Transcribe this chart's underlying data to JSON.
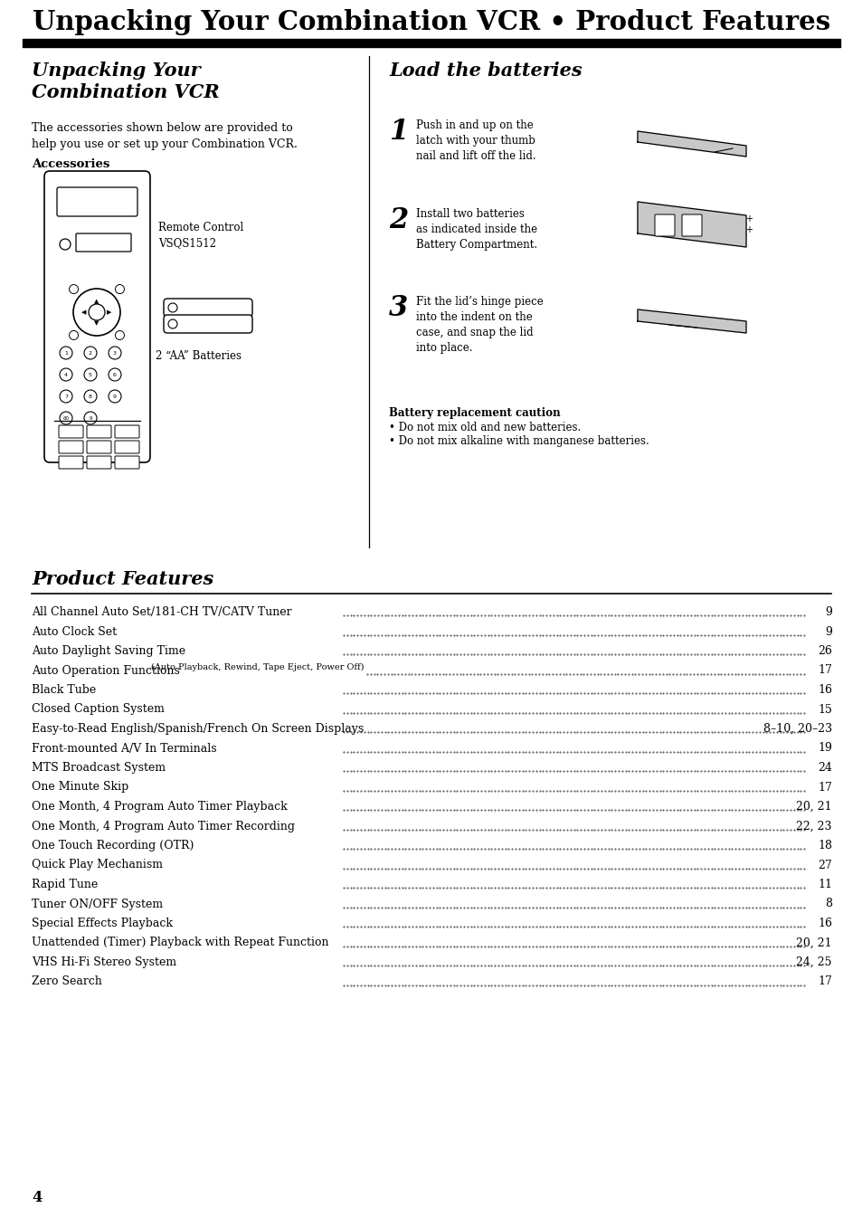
{
  "main_title": "Unpacking Your Combination VCR • Product Features",
  "left_section_title": "Unpacking Your\nCombination VCR",
  "left_body": "The accessories shown below are provided to\nhelp you use or set up your Combination VCR.",
  "accessories_label": "Accessories",
  "remote_label": "Remote Control\nVSQS1512",
  "batteries_label": "2 “AA” Batteries",
  "right_section_title": "Load the batteries",
  "step1_num": "1",
  "step1_text": "Push in and up on the\nlatch with your thumb\nnail and lift off the lid.",
  "step2_num": "2",
  "step2_text": "Install two batteries\nas indicated inside the\nBattery Compartment.",
  "step3_num": "3",
  "step3_text": "Fit the lid’s hinge piece\ninto the indent on the\ncase, and snap the lid\ninto place.",
  "battery_caution_title": "Battery replacement caution",
  "battery_caution_items": [
    "Do not mix old and new batteries.",
    "Do not mix alkaline with manganese batteries."
  ],
  "product_features_title": "Product Features",
  "features": [
    [
      "All Channel Auto Set/181-CH TV/CATV Tuner",
      "",
      "9"
    ],
    [
      "Auto Clock Set",
      "",
      "9"
    ],
    [
      "Auto Daylight Saving Time",
      "",
      "26"
    ],
    [
      "Auto Operation Functions",
      "(Auto Playback, Rewind, Tape Eject, Power Off)",
      "17"
    ],
    [
      "Black Tube",
      "",
      "16"
    ],
    [
      "Closed Caption System",
      "",
      "15"
    ],
    [
      "Easy-to-Read English/Spanish/French On Screen Displays",
      "",
      "8–10, 20–23"
    ],
    [
      "Front-mounted A/V In Terminals",
      "",
      "19"
    ],
    [
      "MTS Broadcast System",
      "",
      "24"
    ],
    [
      "One Minute Skip",
      "",
      "17"
    ],
    [
      "One Month, 4 Program Auto Timer Playback",
      "",
      "20, 21"
    ],
    [
      "One Month, 4 Program Auto Timer Recording",
      "",
      "22, 23"
    ],
    [
      "One Touch Recording (OTR)",
      "",
      "18"
    ],
    [
      "Quick Play Mechanism",
      "",
      "27"
    ],
    [
      "Rapid Tune",
      "",
      "11"
    ],
    [
      "Tuner ON/OFF System",
      "",
      "8"
    ],
    [
      "Special Effects Playback",
      "",
      "16"
    ],
    [
      "Unattended (Timer) Playback with Repeat Function",
      "",
      "20, 21"
    ],
    [
      "VHS Hi-Fi Stereo System",
      "",
      "24, 25"
    ],
    [
      "Zero Search",
      "",
      "17"
    ]
  ],
  "page_number": "4",
  "bg_color": "#ffffff",
  "text_color": "#000000"
}
